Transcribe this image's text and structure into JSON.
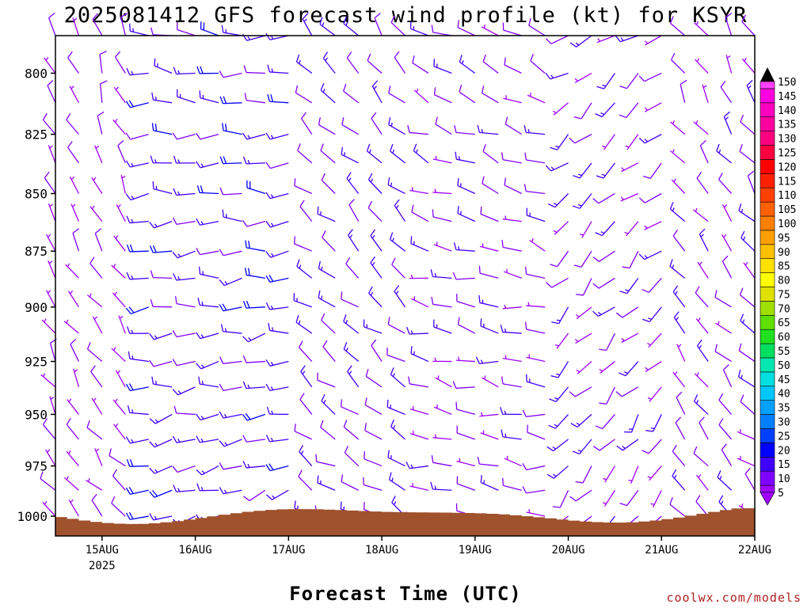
{
  "chart_data": {
    "type": "barb",
    "title": "2025081412 GFS forecast wind profile (kt) for KSYR",
    "xlabel": "Forecast Time (UTC)",
    "ylabel": "",
    "credit": "coolwx.com/models",
    "x_ticks": [
      "15AUG",
      "16AUG",
      "17AUG",
      "18AUG",
      "19AUG",
      "20AUG",
      "21AUG",
      "22AUG"
    ],
    "x_year": "2025",
    "x_range": [
      "2025-08-14T12Z",
      "2025-08-22T00Z"
    ],
    "y_ticks": [
      800,
      825,
      850,
      875,
      900,
      925,
      950,
      975,
      1000
    ],
    "y_range_hPa": [
      785,
      1010
    ],
    "levels_hPa": [
      785,
      800,
      812,
      825,
      837,
      850,
      862,
      875,
      887,
      900,
      912,
      925,
      937,
      950,
      962,
      975,
      987,
      1000
    ],
    "time_step_hours": 6,
    "colorbar": {
      "ticks": [
        5,
        10,
        15,
        20,
        25,
        30,
        35,
        40,
        45,
        50,
        55,
        60,
        65,
        70,
        75,
        80,
        85,
        90,
        95,
        100,
        105,
        110,
        115,
        120,
        125,
        130,
        135,
        140,
        145,
        150
      ],
      "colors": [
        "#a000ff",
        "#8000ff",
        "#4000ff",
        "#0000ff",
        "#0040ff",
        "#0080ff",
        "#00a0ff",
        "#00c8ff",
        "#00e0e0",
        "#00e8b0",
        "#00e060",
        "#20e020",
        "#60e000",
        "#a0e000",
        "#e0e000",
        "#ffff00",
        "#ffe000",
        "#ffc000",
        "#ffa000",
        "#ff8000",
        "#ff6000",
        "#ff4000",
        "#ff2000",
        "#ff0000",
        "#ff0040",
        "#ff0080",
        "#ff00a0",
        "#ff00c0",
        "#ff00e0",
        "#ff40ff"
      ]
    },
    "colors": {
      "terrain": "#a0522d",
      "frame": "#000000"
    },
    "wind_regimes": [
      {
        "period": "14AUG 12Z - 15AUG 06Z",
        "direction": "N to NW",
        "speed_kt": [
          5,
          10
        ]
      },
      {
        "period": "15AUG 12Z - 17AUG 00Z",
        "direction": "W to WNW",
        "speed_kt": [
          10,
          20
        ]
      },
      {
        "period": "17AUG 06Z - 18AUG 06Z",
        "direction": "NW to N",
        "speed_kt": [
          10,
          15
        ]
      },
      {
        "period": "18AUG 12Z - 19AUG 18Z",
        "direction": "W to NW",
        "speed_kt": [
          5,
          15
        ]
      },
      {
        "period": "20AUG 00Z - 21AUG 00Z",
        "direction": "S to W",
        "speed_kt": [
          5,
          15
        ]
      },
      {
        "period": "21AUG 06Z - 21AUG 18Z",
        "direction": "NW to N",
        "speed_kt": [
          5,
          15
        ]
      }
    ]
  }
}
